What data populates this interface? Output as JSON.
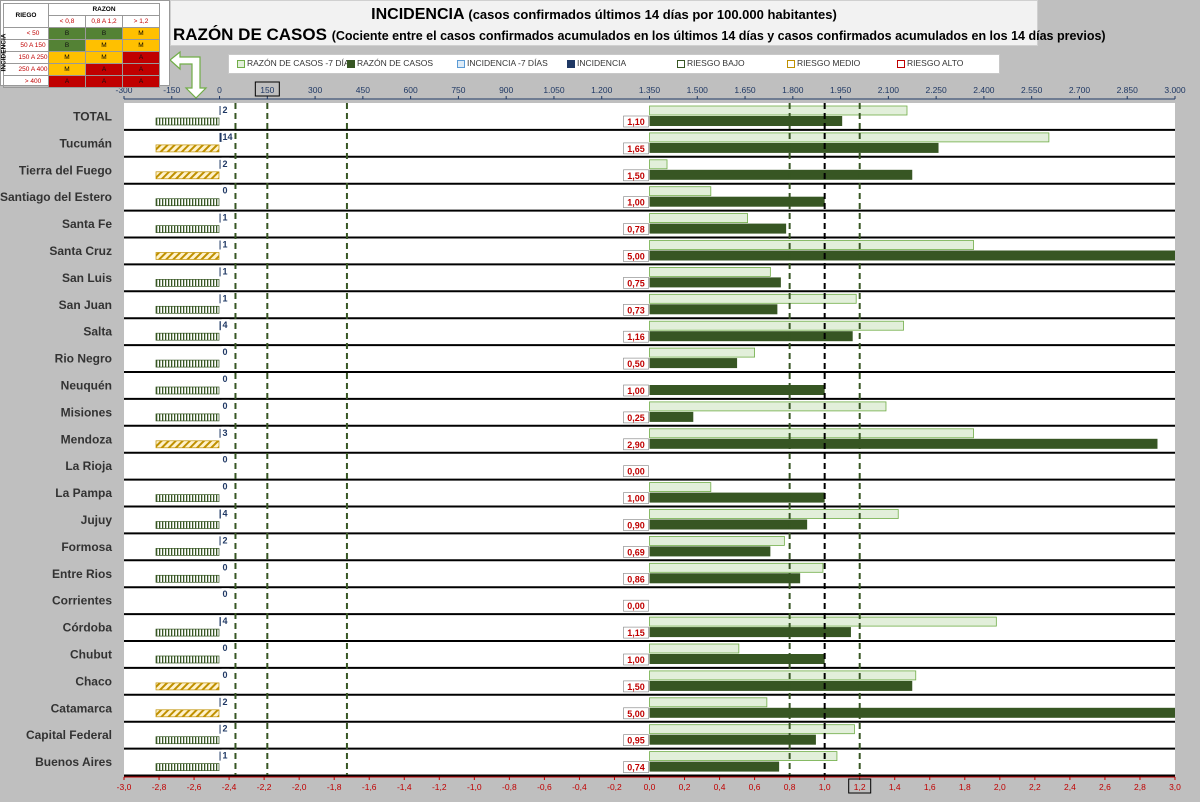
{
  "header": {
    "title_main": "INCIDENCIA",
    "title_sub": "(casos confirmados últimos 14 días por 100.000 habitantes)",
    "subtitle_main": "RAZÓN DE CASOS",
    "subtitle_sub": "(Cociente entre el casos confirmados acumulados en los últimos 14 días y casos confirmados acumulados en los 14 días previos)"
  },
  "risk_table": {
    "riesgo_label": "RIEGO",
    "razon_label": "RAZON",
    "incidencia_label": "INCIDENCIA",
    "razon_cols": [
      "< 0,8",
      "0,8 A 1,2",
      "> 1,2"
    ],
    "rows": [
      {
        "range": "< 50",
        "cells": [
          "B",
          "B",
          "M"
        ]
      },
      {
        "range": "50 A 150",
        "cells": [
          "B",
          "M",
          "M"
        ]
      },
      {
        "range": "150 A 250",
        "cells": [
          "M",
          "M",
          "A"
        ]
      },
      {
        "range": "250 A 400",
        "cells": [
          "M",
          "A",
          "A"
        ]
      },
      {
        "range": "> 400",
        "cells": [
          "A",
          "A",
          "A"
        ]
      }
    ],
    "colors": {
      "B": "#548235",
      "M": "#ffc000",
      "A": "#c00000"
    }
  },
  "legend": [
    {
      "label": "RAZÓN DE CASOS -7 DÍAS",
      "color": "#e2efda",
      "border": "#70ad47"
    },
    {
      "label": "RAZÓN DE CASOS",
      "color": "#375623",
      "border": "#375623"
    },
    {
      "label": "INCIDENCIA -7 DÍAS",
      "color": "#ddebf7",
      "border": "#5b9bd5"
    },
    {
      "label": "INCIDENCIA",
      "color": "#1f3864",
      "border": "#1f3864"
    },
    {
      "label": "RIESGO BAJO",
      "color": "#ffffff",
      "border": "#375623"
    },
    {
      "label": "RIESGO MEDIO",
      "color": "#ffffff",
      "border": "#bf9000"
    },
    {
      "label": "RIESGO ALTO",
      "color": "#ffffff",
      "border": "#c00000"
    }
  ],
  "chart_data": {
    "type": "bar",
    "orientation": "horizontal",
    "categories": [
      "TOTAL",
      "Tucumán",
      "Tierra del Fuego",
      "Santiago del Estero",
      "Santa Fe",
      "Santa Cruz",
      "San Luis",
      "San Juan",
      "Salta",
      "Rio Negro",
      "Neuquén",
      "Misiones",
      "Mendoza",
      "La Rioja",
      "La Pampa",
      "Jujuy",
      "Formosa",
      "Entre Rios",
      "Corrientes",
      "Córdoba",
      "Chubut",
      "Chaco",
      "Catamarca",
      "Capital Federal",
      "Buenos Aires"
    ],
    "top_axis": {
      "range": [
        -300,
        3000
      ],
      "ticks": [
        "-300",
        "-150",
        "0",
        "150",
        "300",
        "450",
        "600",
        "750",
        "900",
        "1.050",
        "1.200",
        "1.350",
        "1.500",
        "1.650",
        "1.800",
        "1.950",
        "2.100",
        "2.250",
        "2.400",
        "2.550",
        "2.700",
        "2.850",
        "3.000"
      ],
      "highlighted_tick": "150",
      "color": "#1f3864"
    },
    "bottom_axis": {
      "range": [
        -3.0,
        3.0
      ],
      "ticks": [
        "-3,0",
        "-2,8",
        "-2,6",
        "-2,4",
        "-2,2",
        "-2,0",
        "-1,8",
        "-1,6",
        "-1,4",
        "-1,2",
        "-1,0",
        "-0,8",
        "-0,6",
        "-0,4",
        "-0,2",
        "0,0",
        "0,2",
        "0,4",
        "0,6",
        "0,8",
        "1,0",
        "1,2",
        "1,4",
        "1,6",
        "1,8",
        "2,0",
        "2,2",
        "2,4",
        "2,6",
        "2,8",
        "3,0"
      ],
      "highlighted_tick": "1,2",
      "color": "#c00000"
    },
    "series": [
      {
        "name": "RAZÓN DE CASOS -7 DÍAS",
        "values": [
          1.47,
          2.28,
          0.1,
          0.35,
          0.56,
          1.85,
          0.69,
          1.18,
          1.45,
          0.6,
          0.0,
          1.35,
          1.85,
          0.0,
          0.35,
          1.42,
          0.77,
          0.99,
          0.0,
          1.98,
          0.51,
          1.52,
          0.67,
          1.17,
          1.07
        ]
      },
      {
        "name": "RAZÓN DE CASOS",
        "values": [
          1.1,
          1.65,
          1.5,
          1.0,
          0.78,
          5.0,
          0.75,
          0.73,
          1.16,
          0.5,
          1.0,
          0.25,
          2.9,
          0.0,
          1.0,
          0.9,
          0.69,
          0.86,
          0.0,
          1.15,
          1.0,
          1.5,
          5.0,
          0.95,
          0.74
        ]
      },
      {
        "name": "RAZÓN DE CASOS labels",
        "values": [
          "1,10",
          "1,65",
          "1,50",
          "1,00",
          "0,78",
          "5,00",
          "0,75",
          "0,73",
          "1,16",
          "0,50",
          "1,00",
          "0,25",
          "2,90",
          "0,00",
          "1,00",
          "0,90",
          "0,69",
          "0,86",
          "0,00",
          "1,15",
          "1,00",
          "1,50",
          "5,00",
          "0,95",
          "0,74"
        ]
      },
      {
        "name": "INCIDENCIA",
        "values": [
          2,
          14,
          2,
          0,
          1,
          1,
          1,
          1,
          4,
          0,
          0,
          0,
          3,
          0,
          0,
          4,
          2,
          0,
          0,
          4,
          0,
          0,
          2,
          2,
          1
        ]
      },
      {
        "name": "RIESGO",
        "values": [
          "BAJO",
          "MEDIO",
          "MEDIO",
          "BAJO",
          "BAJO",
          "MEDIO",
          "BAJO",
          "BAJO",
          "BAJO",
          "BAJO",
          "BAJO",
          "BAJO",
          "MEDIO",
          "",
          "BAJO",
          "BAJO",
          "BAJO",
          "BAJO",
          "",
          "BAJO",
          "BAJO",
          "MEDIO",
          "MEDIO",
          "BAJO",
          "BAJO"
        ]
      }
    ],
    "reference_lines": [
      {
        "axis": "bottom",
        "value": 0.8,
        "style": "dashed",
        "color": "#375623"
      },
      {
        "axis": "bottom",
        "value": 1.0,
        "style": "dashed",
        "color": "#000000"
      },
      {
        "axis": "bottom",
        "value": 1.2,
        "style": "dashed",
        "color": "#375623"
      },
      {
        "axis": "top",
        "value": 50,
        "style": "dashed",
        "color": "#375623"
      },
      {
        "axis": "top",
        "value": 150,
        "style": "dashed",
        "color": "#375623"
      },
      {
        "axis": "top",
        "value": 400,
        "style": "dashed",
        "color": "#375623"
      }
    ],
    "grid": false,
    "legend_position": "top"
  }
}
